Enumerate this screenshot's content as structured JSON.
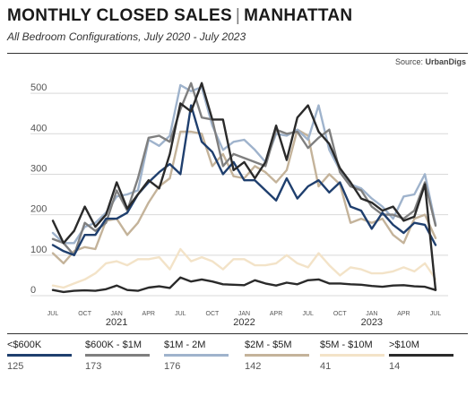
{
  "header": {
    "title_left": "MONTHLY CLOSED SALES",
    "title_right": "MANHATTAN",
    "subtitle": "All Bedroom Configurations, July 2020 - July 2023",
    "source_label": "Source:",
    "source_name": "UrbanDigs"
  },
  "chart_data": {
    "type": "line",
    "title": "MONTHLY CLOSED SALES | MANHATTAN",
    "subtitle": "All Bedroom Configurations, July 2020 - July 2023",
    "ylim": [
      0,
      540
    ],
    "yticks": [
      0,
      100,
      200,
      300,
      400,
      500
    ],
    "ytick_labels": [
      "0",
      "100",
      "200",
      "300",
      "400",
      "500"
    ],
    "grid": true,
    "legend_position": "bottom",
    "x": [
      "2020-07",
      "2020-08",
      "2020-09",
      "2020-10",
      "2020-11",
      "2020-12",
      "2021-01",
      "2021-02",
      "2021-03",
      "2021-04",
      "2021-05",
      "2021-06",
      "2021-07",
      "2021-08",
      "2021-09",
      "2021-10",
      "2021-11",
      "2021-12",
      "2022-01",
      "2022-02",
      "2022-03",
      "2022-04",
      "2022-05",
      "2022-06",
      "2022-07",
      "2022-08",
      "2022-09",
      "2022-10",
      "2022-11",
      "2022-12",
      "2023-01",
      "2023-02",
      "2023-03",
      "2023-04",
      "2023-05",
      "2023-06",
      "2023-07"
    ],
    "month_labels": [
      "JUL",
      "",
      "",
      "OCT",
      "",
      "",
      "JAN",
      "",
      "",
      "APR",
      "",
      "",
      "JUL",
      "",
      "",
      "OCT",
      "",
      "",
      "JAN",
      "",
      "",
      "APR",
      "",
      "",
      "JUL",
      "",
      "",
      "OCT",
      "",
      "",
      "JAN",
      "",
      "",
      "APR",
      "",
      "",
      "JUL"
    ],
    "year_labels": [
      {
        "index": 6,
        "label": "2021"
      },
      {
        "index": 18,
        "label": "2022"
      },
      {
        "index": 30,
        "label": "2023"
      }
    ],
    "series": [
      {
        "name": "<$600K",
        "color": "#1f3f6e",
        "last_value": "125",
        "values": [
          125,
          110,
          100,
          150,
          150,
          190,
          190,
          205,
          250,
          280,
          305,
          325,
          300,
          470,
          380,
          355,
          300,
          330,
          285,
          285,
          260,
          235,
          290,
          240,
          270,
          285,
          255,
          280,
          220,
          210,
          165,
          205,
          175,
          155,
          180,
          175,
          125
        ]
      },
      {
        "name": "$600K - $1M",
        "color": "#7f7f7f",
        "last_value": "173",
        "values": [
          140,
          130,
          100,
          180,
          160,
          180,
          260,
          210,
          290,
          390,
          395,
          380,
          460,
          525,
          440,
          435,
          320,
          350,
          340,
          330,
          320,
          410,
          400,
          405,
          365,
          390,
          410,
          305,
          270,
          260,
          220,
          200,
          200,
          190,
          210,
          280,
          173
        ]
      },
      {
        "name": "$1M - 2M",
        "color": "#9fb3cc",
        "last_value": "176",
        "values": [
          155,
          130,
          130,
          170,
          180,
          205,
          245,
          250,
          260,
          385,
          370,
          395,
          520,
          505,
          515,
          420,
          360,
          380,
          385,
          360,
          330,
          400,
          395,
          410,
          385,
          470,
          360,
          310,
          275,
          265,
          240,
          220,
          190,
          245,
          250,
          300,
          176
        ]
      },
      {
        "name": "$2M - $5M",
        "color": "#c4b39a",
        "last_value": "142",
        "values": [
          105,
          80,
          110,
          120,
          115,
          185,
          190,
          150,
          180,
          230,
          270,
          290,
          405,
          405,
          400,
          320,
          350,
          295,
          290,
          320,
          305,
          280,
          310,
          410,
          395,
          270,
          300,
          275,
          180,
          190,
          180,
          190,
          150,
          130,
          190,
          200,
          142
        ]
      },
      {
        "name": "$5M - $10M",
        "color": "#f3e3c8",
        "last_value": "41",
        "values": [
          25,
          20,
          30,
          40,
          55,
          80,
          85,
          75,
          90,
          90,
          95,
          65,
          115,
          85,
          95,
          85,
          65,
          90,
          90,
          75,
          75,
          80,
          100,
          80,
          70,
          105,
          75,
          50,
          70,
          65,
          55,
          55,
          60,
          70,
          60,
          80,
          41
        ]
      },
      {
        "name": ">$10M",
        "color": "#2a2a2a",
        "last_value": "14",
        "values": [
          185,
          130,
          160,
          220,
          170,
          200,
          280,
          215,
          250,
          285,
          265,
          350,
          475,
          455,
          525,
          435,
          435,
          310,
          330,
          290,
          330,
          420,
          335,
          440,
          470,
          405,
          375,
          315,
          280,
          240,
          230,
          210,
          220,
          185,
          195,
          275,
          14
        ]
      },
      {
        "name": ">$10M-low",
        "color": "#2a2a2a",
        "values": [
          14,
          9,
          12,
          13,
          12,
          16,
          25,
          14,
          12,
          20,
          23,
          19,
          45,
          35,
          40,
          35,
          28,
          27,
          26,
          38,
          30,
          25,
          32,
          28,
          38,
          40,
          30,
          30,
          28,
          27,
          24,
          22,
          25,
          26,
          23,
          22,
          14
        ]
      }
    ]
  },
  "legend": [
    {
      "label": "<$600K",
      "color": "#1f3f6e",
      "value": "125"
    },
    {
      "label": "$600K - $1M",
      "color": "#7f7f7f",
      "value": "173"
    },
    {
      "label": "$1M - 2M",
      "color": "#9fb3cc",
      "value": "176"
    },
    {
      "label": "$2M - $5M",
      "color": "#c4b39a",
      "value": "142"
    },
    {
      "label": "$5M - $10M",
      "color": "#f3e3c8",
      "value": "41"
    },
    {
      "label": ">$10M",
      "color": "#2a2a2a",
      "value": "14"
    }
  ]
}
